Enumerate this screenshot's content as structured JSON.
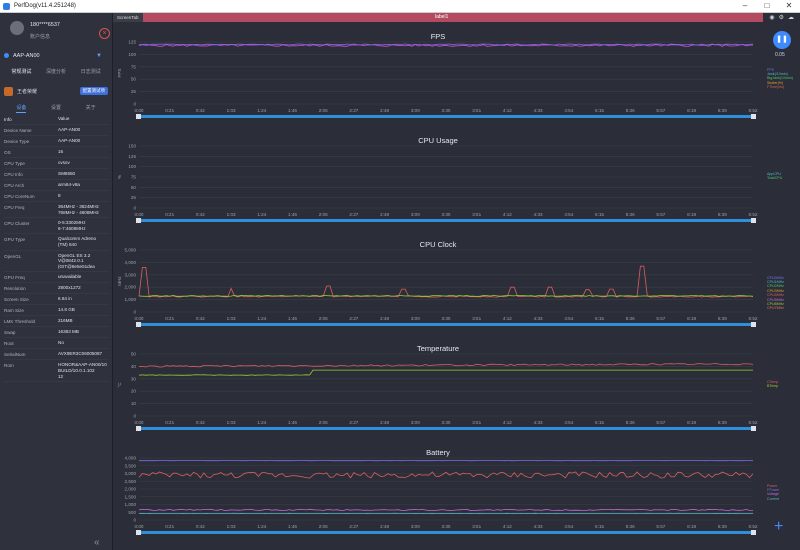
{
  "window": {
    "title": "PerfDog(v11.4.251248)"
  },
  "user": {
    "name": "180****6537",
    "sub": "账户信息"
  },
  "device": {
    "name": "AAP-AN00"
  },
  "nav_tabs": [
    "常规测试",
    "深度分析",
    "日志测试"
  ],
  "app": {
    "name": "王者荣耀",
    "badge": "配置测试项"
  },
  "sub_tabs": [
    "设备",
    "设置",
    "关于"
  ],
  "info_header": {
    "k": "Info",
    "v": "Value"
  },
  "info_rows": [
    {
      "k": "Device Name",
      "v": "AAP-AN00"
    },
    {
      "k": "Device Type",
      "v": "AAP-AN00"
    },
    {
      "k": "OS",
      "v": "16"
    },
    {
      "k": "CPU Type",
      "v": "cvsov"
    },
    {
      "k": "CPU Info",
      "v": "SM8650"
    },
    {
      "k": "CPU Arch",
      "v": "arm64-v8a"
    },
    {
      "k": "CPU CoreNum",
      "v": "8"
    },
    {
      "k": "CPU Freq",
      "v": "364MHz - 3624MHz\n768MHz - 4608MHz"
    },
    {
      "k": "CPU Cluster",
      "v": "0-5:3302MHz\n6-7:4608MHz"
    },
    {
      "k": "GPU Type",
      "v": "Qualcomm Adreno\n(TM) 840"
    },
    {
      "k": "OpenGL",
      "v": "OpenGL ES 3.2\nV@0842.0.1\n(GIT@8e5e51dea"
    },
    {
      "k": "GPU Freq",
      "v": "unavailable"
    },
    {
      "k": "Resolution",
      "v": "2800x1272"
    },
    {
      "k": "Screen Size",
      "v": "6.84 in"
    },
    {
      "k": "Ram Size",
      "v": "14.8 GB"
    },
    {
      "k": "LMK Threshold",
      "v": "216MB"
    },
    {
      "k": "Swap",
      "v": "16383 MB"
    },
    {
      "k": "Root",
      "v": "No"
    },
    {
      "k": "SerialNum",
      "v": "AVX9ER3C06005087"
    },
    {
      "k": "Rom",
      "v": "HONOR&AAP-AN00/10\nBUILD/10.0.1.102\n12"
    }
  ],
  "top_strip": {
    "tab": "ScreenTab",
    "label": "label1"
  },
  "fps_readout": "0.05",
  "time_ticks": [
    "0:00",
    "0:21",
    "0:42",
    "1:03",
    "1:24",
    "1:45",
    "2:06",
    "2:27",
    "2:48",
    "3:09",
    "3:30",
    "3:51",
    "4:12",
    "4:33",
    "4:54",
    "5:15",
    "5:36",
    "5:57",
    "6:18",
    "6:39",
    "6:52"
  ],
  "charts": [
    {
      "title": "FPS",
      "ylabel": "FPS",
      "yticks": [
        "125",
        "100",
        "75",
        "50",
        "25",
        "0"
      ],
      "ymax": 125,
      "legend": [
        {
          "t": "FPS",
          "c": "#7b6ee8"
        },
        {
          "t": "Jank(/10min)",
          "c": "#4db8c8"
        },
        {
          "t": "BigJank(/10min)",
          "c": "#52c46b"
        },
        {
          "t": "Stutter(%)",
          "c": "#e0a030"
        },
        {
          "t": "FTime(ms)",
          "c": "#d95f5f"
        }
      ],
      "series": [
        {
          "c": "#d34bd6",
          "base": 118,
          "amp": 2
        },
        {
          "c": "#7b6ee8",
          "base": 120,
          "amp": 1
        }
      ]
    },
    {
      "title": "CPU Usage",
      "ylabel": "%",
      "yticks": [
        "150",
        "125",
        "100",
        "75",
        "50",
        "25",
        "0"
      ],
      "ymax": 150,
      "legend": [
        {
          "t": "AppCPU",
          "c": "#4db8c8"
        },
        {
          "t": "TotalCPU",
          "c": "#52c46b"
        }
      ],
      "series": []
    },
    {
      "title": "CPU Clock",
      "ylabel": "MHz",
      "yticks": [
        "5,000",
        "4,000",
        "3,000",
        "2,000",
        "1,000",
        "0"
      ],
      "ymax": 5000,
      "legend": [
        {
          "t": "CPU0MHz",
          "c": "#7b6ee8"
        },
        {
          "t": "CPU1MHz",
          "c": "#4db8c8"
        },
        {
          "t": "CPU2MHz",
          "c": "#52c46b"
        },
        {
          "t": "CPU3MHz",
          "c": "#e0a030"
        },
        {
          "t": "CPU4MHz",
          "c": "#d95f5f"
        },
        {
          "t": "CPU5MHz",
          "c": "#c46bd9"
        },
        {
          "t": "CPU6MHz",
          "c": "#9acd32"
        },
        {
          "t": "CPU7MHz",
          "c": "#e87070"
        }
      ],
      "series": [
        {
          "c": "#d95f5f",
          "base": 1250,
          "amp": 50,
          "spikes": [
            [
              0.01,
              3600
            ],
            [
              0.15,
              1900
            ],
            [
              0.31,
              2100
            ],
            [
              0.43,
              1850
            ],
            [
              0.61,
              2000
            ],
            [
              0.73,
              1800
            ],
            [
              0.77,
              1850
            ],
            [
              0.82,
              3700
            ],
            [
              0.67,
              2000
            ]
          ]
        },
        {
          "c": "#9acd32",
          "base": 1300,
          "amp": 40
        }
      ]
    },
    {
      "title": "Temperature",
      "ylabel": "°C",
      "yticks": [
        "50",
        "40",
        "30",
        "20",
        "10",
        "0"
      ],
      "ymax": 50,
      "legend": [
        {
          "t": "CTemp",
          "c": "#d95f5f"
        },
        {
          "t": "BTemp",
          "c": "#9acd32"
        }
      ],
      "series": [
        {
          "c": "#d95f5f",
          "base": 40,
          "amp": 0.6,
          "trend": 2
        },
        {
          "c": "#9acd32",
          "base": 33,
          "amp": 0.2,
          "step": true
        }
      ]
    },
    {
      "title": "Battery",
      "ylabel": "",
      "yticks": [
        "4,000",
        "3,500",
        "3,000",
        "2,500",
        "2,000",
        "1,500",
        "1,000",
        "500",
        "0"
      ],
      "ymax": 4000,
      "legend": [
        {
          "t": "Power",
          "c": "#d95f5f"
        },
        {
          "t": "FPower",
          "c": "#7b6ee8"
        },
        {
          "t": "Voltage",
          "c": "#c46bd9"
        },
        {
          "t": "Current",
          "c": "#4db8c8"
        }
      ],
      "series": [
        {
          "c": "#d95f5f",
          "base": 2900,
          "amp": 200
        },
        {
          "c": "#7b6ee8",
          "base": 3830,
          "amp": 5
        },
        {
          "c": "#c46bd9",
          "base": 650,
          "amp": 40
        },
        {
          "c": "#4db8c8",
          "base": 420,
          "amp": 10
        }
      ]
    }
  ]
}
